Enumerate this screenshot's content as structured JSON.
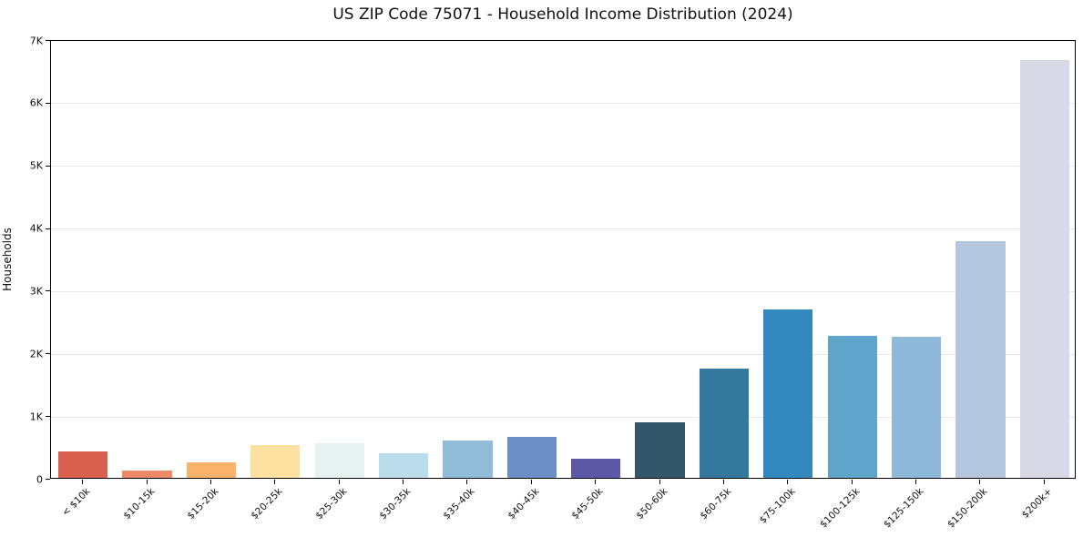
{
  "chart": {
    "title": "US ZIP Code 75071 - Household Income Distribution (2024)",
    "ylabel": "Households"
  },
  "chart_data": {
    "type": "bar",
    "title": "US ZIP Code 75071 - Household Income Distribution (2024)",
    "xlabel": "",
    "ylabel": "Households",
    "ylim": [
      0,
      7000
    ],
    "yticks": [
      0,
      1000,
      2000,
      3000,
      4000,
      5000,
      6000,
      7000
    ],
    "ytick_labels": [
      "0",
      "1K",
      "2K",
      "3K",
      "4K",
      "5K",
      "6K",
      "7K"
    ],
    "grid": true,
    "legend": false,
    "categories": [
      "< $10k",
      "$10-15k",
      "$15-20k",
      "$20-25k",
      "$25-30k",
      "$30-35k",
      "$35-40k",
      "$40-45k",
      "$45-50k",
      "$50-60k",
      "$60-75k",
      "$75-100k",
      "$100-125k",
      "$125-150k",
      "$150-200k",
      "$200k+"
    ],
    "values": [
      420,
      120,
      240,
      520,
      550,
      390,
      600,
      660,
      300,
      890,
      1750,
      2680,
      2270,
      2250,
      3780,
      6660
    ],
    "bar_colors": [
      "#d95f4e",
      "#ee8a68",
      "#f8b26a",
      "#fce1a0",
      "#e6f1f1",
      "#bbddeb",
      "#90bcd8",
      "#6b8fc6",
      "#5c58a5",
      "#34566b",
      "#35789e",
      "#3389bd",
      "#5fa4cb",
      "#8db8d8",
      "#b4c6de",
      "#d7d9e6"
    ],
    "gridline_color": "#e7e7ea"
  }
}
